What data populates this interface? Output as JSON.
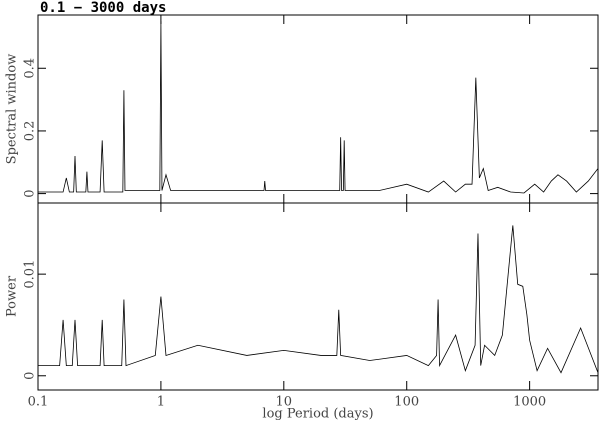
{
  "chart_data": [
    {
      "type": "line",
      "title": "0.1 − 3000 days",
      "y_label": "Spectral window",
      "xscale": "log",
      "color": "#000000",
      "xlim": [
        0.1,
        3600
      ],
      "xticks": [
        0.1,
        1,
        10,
        100,
        1000
      ],
      "ylim": [
        -0.03,
        0.57
      ],
      "yticks": [
        0,
        0.2,
        0.4
      ],
      "x": [
        0.1,
        0.16,
        0.17,
        0.18,
        0.195,
        0.2,
        0.205,
        0.245,
        0.25,
        0.255,
        0.32,
        0.333,
        0.345,
        0.49,
        0.5,
        0.51,
        0.98,
        1.0,
        1.02,
        1.1,
        1.2,
        3,
        6.9,
        7,
        7.1,
        15,
        28.5,
        29,
        29.5,
        30.5,
        31,
        31.5,
        60,
        100,
        150,
        200,
        250,
        300,
        340,
        365,
        390,
        420,
        460,
        550,
        700,
        900,
        1100,
        1300,
        1500,
        1700,
        2000,
        2400,
        3000,
        3600
      ],
      "values": [
        0.005,
        0.005,
        0.05,
        0.005,
        0.005,
        0.12,
        0.005,
        0.005,
        0.07,
        0.005,
        0.005,
        0.17,
        0.005,
        0.005,
        0.33,
        0.01,
        0.01,
        0.55,
        0.01,
        0.06,
        0.01,
        0.01,
        0.01,
        0.04,
        0.01,
        0.01,
        0.01,
        0.18,
        0.01,
        0.01,
        0.17,
        0.01,
        0.01,
        0.03,
        0.005,
        0.04,
        0.005,
        0.03,
        0.03,
        0.37,
        0.05,
        0.08,
        0.01,
        0.02,
        0.005,
        0.002,
        0.03,
        0.005,
        0.04,
        0.06,
        0.04,
        0.005,
        0.04,
        0.08
      ]
    },
    {
      "type": "line",
      "y_label": "Power",
      "x_label": "log Period (days)",
      "xscale": "log",
      "color": "#000000",
      "xlim": [
        0.1,
        3600
      ],
      "xticks": [
        0.1,
        1,
        10,
        100,
        1000
      ],
      "ylim": [
        -0.0014,
        0.017
      ],
      "yticks": [
        0,
        0.01
      ],
      "x": [
        0.1,
        0.15,
        0.16,
        0.17,
        0.19,
        0.2,
        0.21,
        0.32,
        0.333,
        0.345,
        0.48,
        0.5,
        0.52,
        0.9,
        1.0,
        1.1,
        2,
        5,
        10,
        20,
        27,
        28,
        29,
        50,
        100,
        150,
        175,
        180,
        185,
        250,
        300,
        360,
        380,
        400,
        430,
        520,
        600,
        730,
        800,
        880,
        950,
        1000,
        1150,
        1400,
        1800,
        2600,
        3600
      ],
      "values": [
        0.001,
        0.001,
        0.0055,
        0.001,
        0.001,
        0.0055,
        0.001,
        0.001,
        0.0055,
        0.001,
        0.001,
        0.0075,
        0.001,
        0.002,
        0.0078,
        0.002,
        0.003,
        0.002,
        0.0025,
        0.002,
        0.002,
        0.0065,
        0.002,
        0.0015,
        0.002,
        0.001,
        0.002,
        0.0075,
        0.001,
        0.004,
        0.0005,
        0.003,
        0.014,
        0.001,
        0.003,
        0.002,
        0.004,
        0.0148,
        0.009,
        0.0088,
        0.006,
        0.0035,
        0.0005,
        0.0027,
        0.0003,
        0.0047,
        0.0003
      ]
    }
  ]
}
